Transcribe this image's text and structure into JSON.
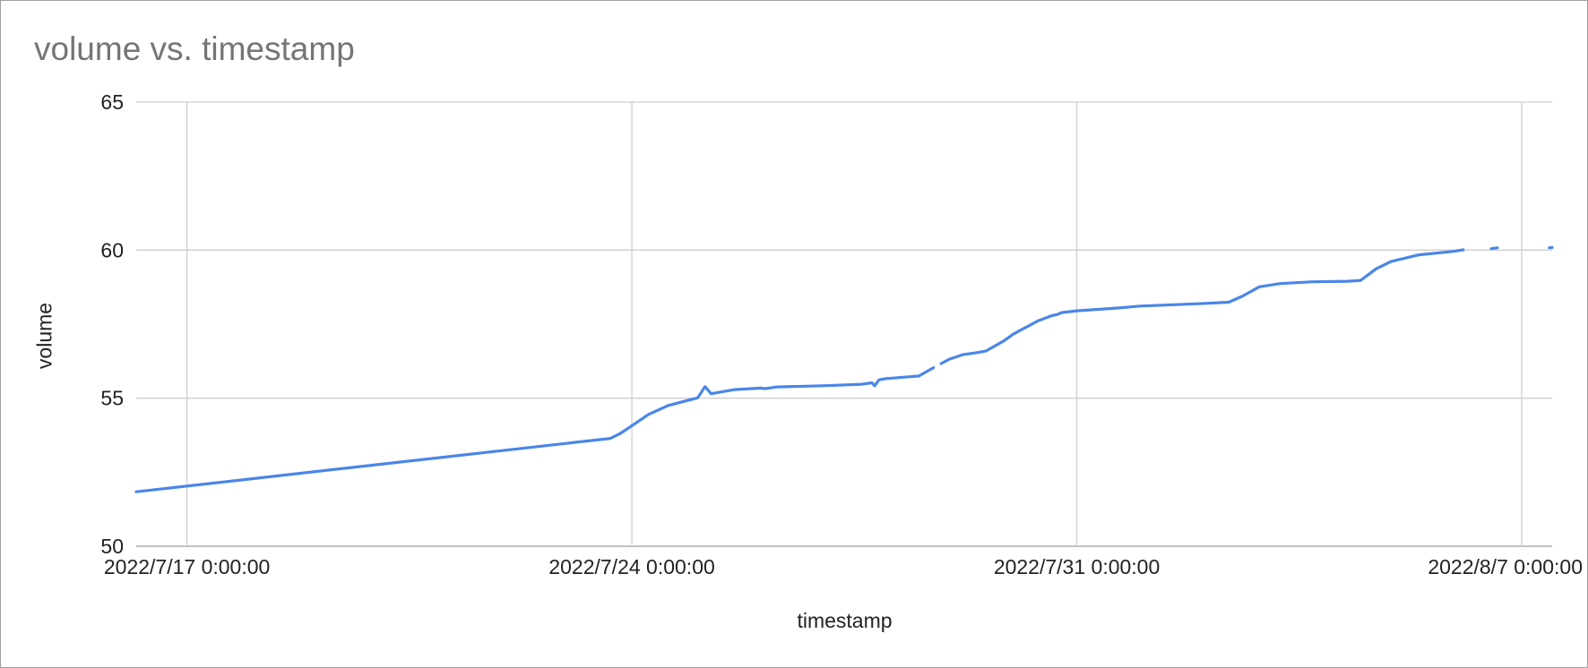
{
  "chart_data": {
    "type": "line",
    "title": "volume vs. timestamp",
    "xlabel": "timestamp",
    "ylabel": "volume",
    "ylim": [
      50,
      65
    ],
    "xlim": [
      "2022-07-16T04:51",
      "2022-08-07T11:30"
    ],
    "yticks": [
      "50",
      "55",
      "60",
      "65"
    ],
    "xticks": [
      {
        "value": "2022-07-17T00:00",
        "label": "2022/7/17 0:00:00"
      },
      {
        "value": "2022-07-24T00:00",
        "label": "2022/7/24 0:00:00"
      },
      {
        "value": "2022-07-31T00:00",
        "label": "2022/7/31 0:00:00"
      },
      {
        "value": "2022-08-07T00:00",
        "label": "2022/8/7 0:00:00"
      }
    ],
    "grid": true,
    "legend": "none",
    "color": "#4a86e8",
    "segments": [
      [
        [
          "2022-07-16T04:51",
          51.84
        ],
        [
          "2022-07-23T15:54",
          53.64
        ],
        [
          "2022-07-23T19:40",
          53.81
        ],
        [
          "2022-07-24T00:00",
          54.07
        ],
        [
          "2022-07-24T06:14",
          54.45
        ],
        [
          "2022-07-24T13:38",
          54.75
        ],
        [
          "2022-07-25T00:50",
          55.01
        ],
        [
          "2022-07-25T03:37",
          55.39
        ],
        [
          "2022-07-25T05:56",
          55.15
        ],
        [
          "2022-07-25T14:48",
          55.29
        ],
        [
          "2022-07-26T00:55",
          55.34
        ],
        [
          "2022-07-26T02:09",
          55.32
        ],
        [
          "2022-07-26T06:59",
          55.38
        ],
        [
          "2022-07-27T00:00",
          55.42
        ],
        [
          "2022-07-27T14:55",
          55.47
        ],
        [
          "2022-07-27T18:40",
          55.52
        ],
        [
          "2022-07-27T19:40",
          55.42
        ],
        [
          "2022-07-27T21:20",
          55.62
        ],
        [
          "2022-07-28T00:00",
          55.66
        ],
        [
          "2022-07-28T12:24",
          55.75
        ],
        [
          "2022-07-28T17:54",
          56.03
        ]
      ],
      [
        [
          "2022-07-28T20:48",
          56.17
        ],
        [
          "2022-07-29T00:00",
          56.32
        ],
        [
          "2022-07-29T04:57",
          56.47
        ],
        [
          "2022-07-29T09:48",
          56.53
        ],
        [
          "2022-07-29T13:36",
          56.59
        ],
        [
          "2022-07-29T20:24",
          56.93
        ],
        [
          "2022-07-30T00:00",
          57.16
        ],
        [
          "2022-07-30T09:19",
          57.61
        ],
        [
          "2022-07-30T14:43",
          57.79
        ],
        [
          "2022-07-30T16:47",
          57.83
        ],
        [
          "2022-07-30T18:15",
          57.89
        ],
        [
          "2022-07-31T00:00",
          57.95
        ],
        [
          "2022-07-31T14:55",
          58.04
        ],
        [
          "2022-08-01T00:00",
          58.11
        ],
        [
          "2022-08-01T21:53",
          58.19
        ],
        [
          "2022-08-02T09:22",
          58.24
        ],
        [
          "2022-08-02T14:40",
          58.45
        ],
        [
          "2022-08-02T20:54",
          58.76
        ],
        [
          "2022-08-03T04:49",
          58.87
        ],
        [
          "2022-08-03T17:02",
          58.93
        ],
        [
          "2022-08-04T06:19",
          58.95
        ],
        [
          "2022-08-04T11:12",
          58.98
        ],
        [
          "2022-08-04T17:02",
          59.37
        ],
        [
          "2022-08-04T22:45",
          59.62
        ],
        [
          "2022-08-05T09:13",
          59.84
        ],
        [
          "2022-08-05T22:15",
          59.96
        ],
        [
          "2022-08-06T01:57",
          60.01
        ]
      ],
      [
        [
          "2022-08-06T12:30",
          60.05
        ],
        [
          "2022-08-06T14:48",
          60.08
        ]
      ],
      [
        [
          "2022-08-07T10:25",
          60.08
        ],
        [
          "2022-08-07T11:30",
          60.09
        ]
      ]
    ]
  }
}
